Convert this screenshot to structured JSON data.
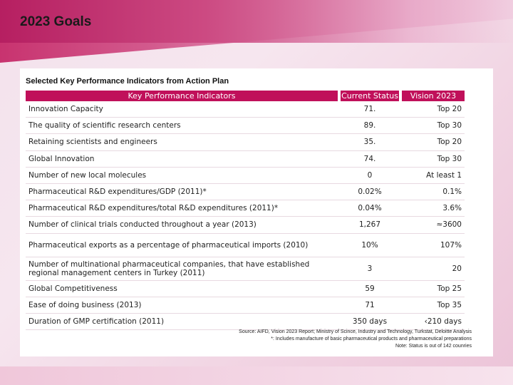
{
  "slide": {
    "title": "2023 Goals",
    "subtitle": "Selected Key Performance Indicators from Action Plan"
  },
  "table": {
    "headers": {
      "indicator": "Key Performance Indicators",
      "status": "Current Status",
      "vision": "Vision 2023"
    },
    "rows": [
      {
        "indicator": "Innovation Capacity",
        "status": "71.",
        "vision": "Top 20"
      },
      {
        "indicator": "The quality of scientific research centers",
        "status": "89.",
        "vision": "Top 30"
      },
      {
        "indicator": "Retaining scientists and engineers",
        "status": "35.",
        "vision": "Top 20"
      },
      {
        "indicator": "Global Innovation",
        "status": "74.",
        "vision": "Top 30"
      },
      {
        "indicator": "Number of new local molecules",
        "status": "0",
        "vision": "At least 1"
      },
      {
        "indicator": "Pharmaceutical R&D expenditures/GDP (2011)*",
        "status": "0.02%",
        "vision": "0.1%"
      },
      {
        "indicator": "Pharmaceutical R&D expenditures/total R&D expenditures (2011)*",
        "status": "0.04%",
        "vision": "3.6%"
      },
      {
        "indicator": "Number of clinical trials conducted throughout a year (2013)",
        "status": "1,267",
        "vision": "≈3600"
      },
      {
        "indicator": "Pharmaceutical exports as a percentage of pharmaceutical imports (2010)",
        "status": "10%",
        "vision": "107%"
      },
      {
        "indicator": "Number of multinational pharmaceutical companies, that have established regional management centers in Turkey (2011)",
        "status": "3",
        "vision": "20"
      },
      {
        "indicator": "Global Competitiveness",
        "status": "59",
        "vision": "Top 25"
      },
      {
        "indicator": "Ease of doing business (2013)",
        "status": "71",
        "vision": "Top 35"
      },
      {
        "indicator": "Duration of GMP certification (2011)",
        "status": "350 days",
        "vision": "‹210 days"
      }
    ]
  },
  "notes": {
    "source": "Source: AIFD, Vision 2023 Report; Ministry of Scince, Industry and Technology, Turkstat, Deloitte Analysis",
    "footnote": "*: Includes manufacture of basic pharmaceutical products and pharmaceutical preparations",
    "status_note": "Note: Status is out of 142 counries"
  },
  "colors": {
    "header_accent": "#c0105a",
    "banner_start": "#b61f61",
    "background": "#f3e2ec"
  }
}
